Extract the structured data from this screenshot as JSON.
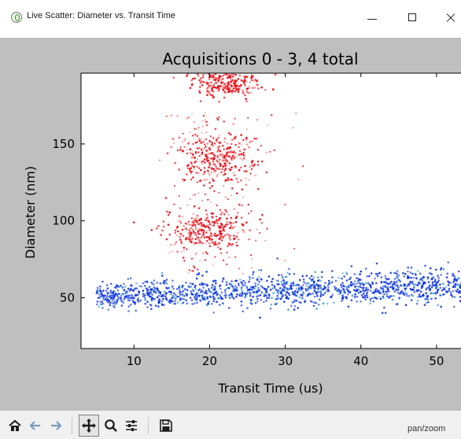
{
  "window": {
    "title": "Live Scatter: Diameter vs. Transit Time",
    "controls": [
      "minimize",
      "maximize",
      "close"
    ]
  },
  "toolbar": {
    "buttons": [
      "home-icon",
      "back-icon",
      "forward-icon",
      "pan-icon",
      "zoom-icon",
      "configure-subplots-icon",
      "save-icon"
    ],
    "active_tool": "pan",
    "status": "pan/zoom"
  },
  "colors": {
    "figure_background": "#bfbfbf",
    "axes_background": "#ffffff",
    "red_series": "#e8000b",
    "blue_series": "#0a2fe0"
  },
  "chart_data": {
    "type": "scatter",
    "title": "Acquisitions 0 - 3, 4 total",
    "xlabel": "Transit Time (us)",
    "ylabel": "Diameter (nm)",
    "xlim": [
      3,
      55
    ],
    "ylim": [
      17,
      196
    ],
    "xticks": [
      10,
      20,
      30,
      40,
      50
    ],
    "yticks": [
      50,
      100,
      150
    ],
    "grid": false,
    "legend": "none",
    "series": [
      {
        "color": "#0a2fe0",
        "clusters": [
          {
            "x_range": [
              5,
              55
            ],
            "y_center_at_x_min": 51,
            "y_center_at_x_max": 59,
            "y_spread": 6
          }
        ]
      },
      {
        "color": "#e8000b",
        "clusters": [
          {
            "x_center": 20,
            "x_spread": 3,
            "y_center": 95,
            "y_spread": 7
          },
          {
            "x_center": 21,
            "x_spread": 2.5,
            "y_center": 140,
            "y_spread": 9
          },
          {
            "x_center": 22,
            "x_spread": 2.5,
            "y_center": 190,
            "y_spread": 5
          },
          {
            "x_range": [
              14,
              30
            ],
            "y_range": [
              65,
              170
            ],
            "note": "sparse scatter"
          }
        ]
      }
    ]
  }
}
